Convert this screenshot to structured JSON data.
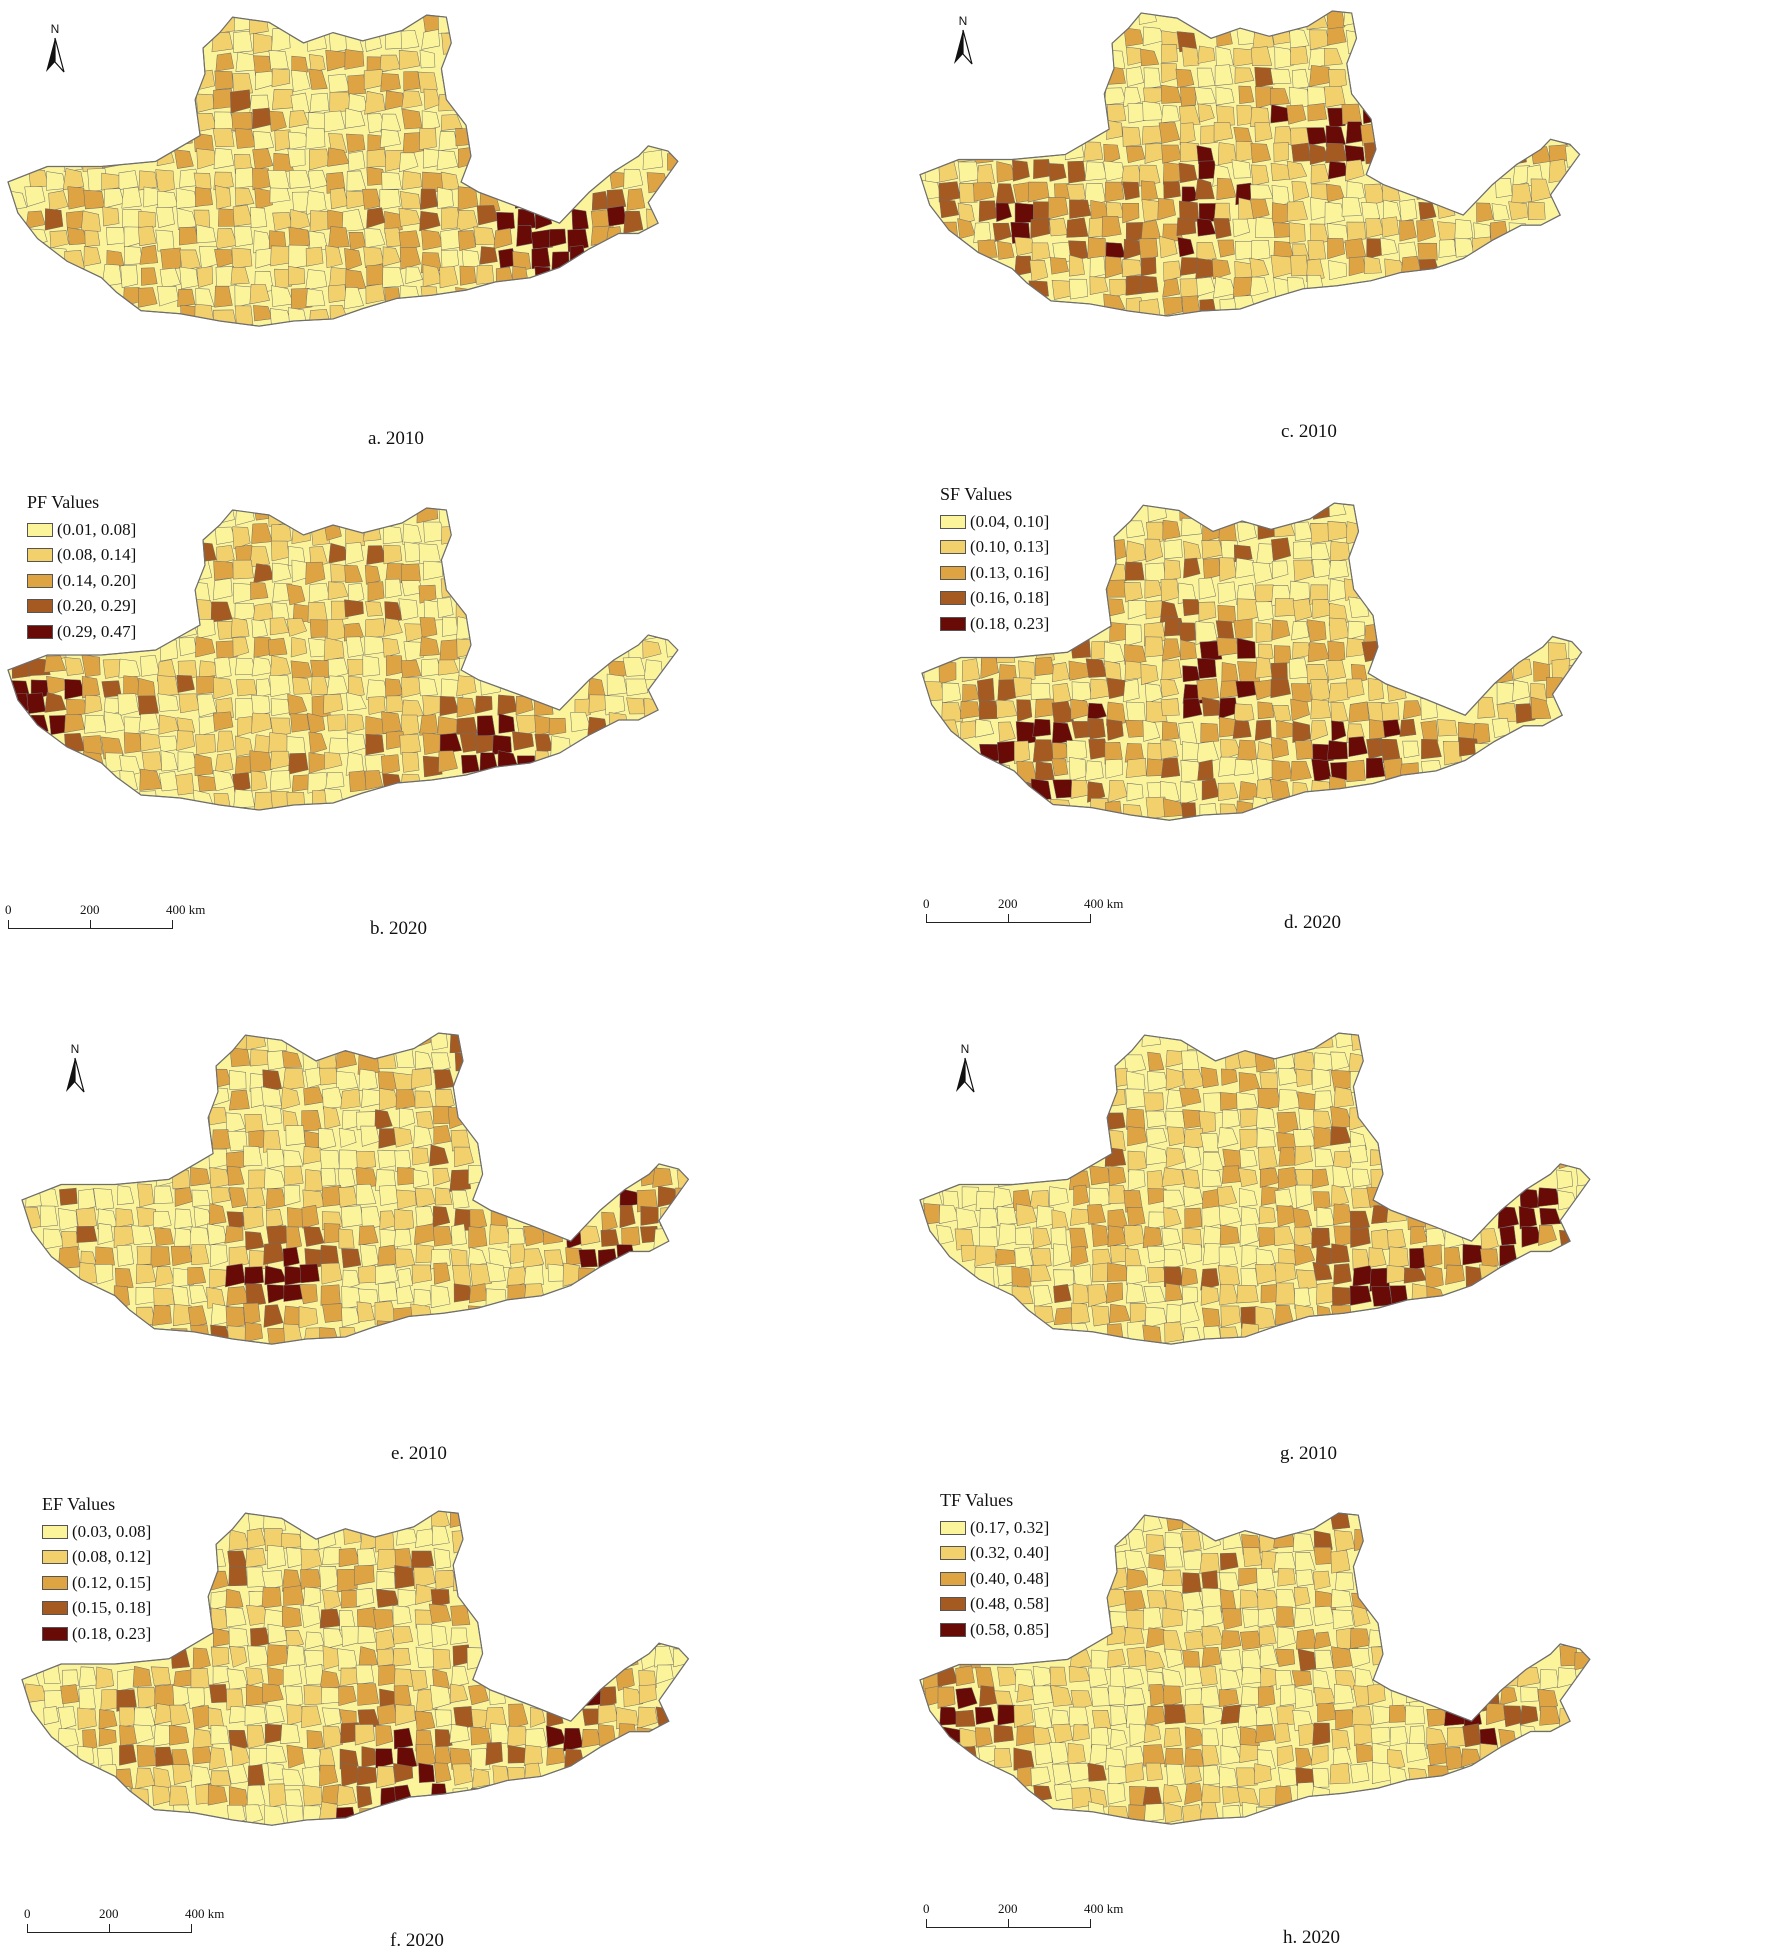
{
  "figure": {
    "panels": [
      {
        "id": "a",
        "caption": "a. 2010"
      },
      {
        "id": "b",
        "caption": "b. 2020"
      },
      {
        "id": "c",
        "caption": "c. 2010"
      },
      {
        "id": "d",
        "caption": "d. 2020"
      },
      {
        "id": "e",
        "caption": "e. 2010"
      },
      {
        "id": "f",
        "caption": "f. 2020"
      },
      {
        "id": "g",
        "caption": "g. 2010"
      },
      {
        "id": "h",
        "caption": "h. 2020"
      }
    ],
    "north_label": "N",
    "scale": {
      "t0": "0",
      "t1": "200",
      "t2": "400 km"
    },
    "legends": {
      "pf": {
        "title": "PF Values",
        "classes": [
          "(0.01, 0.08]",
          "(0.08, 0.14]",
          "(0.14, 0.20]",
          "(0.20, 0.29]",
          "(0.29, 0.47]"
        ]
      },
      "sf": {
        "title": "SF Values",
        "classes": [
          "(0.04, 0.10]",
          "(0.10, 0.13]",
          "(0.13, 0.16]",
          "(0.16, 0.18]",
          "(0.18, 0.23]"
        ]
      },
      "ef": {
        "title": "EF Values",
        "classes": [
          "(0.03, 0.08]",
          "(0.08, 0.12]",
          "(0.12, 0.15]",
          "(0.15, 0.18]",
          "(0.18, 0.23]"
        ]
      },
      "tf": {
        "title": "TF Values",
        "classes": [
          "(0.17, 0.32]",
          "(0.32, 0.40]",
          "(0.40, 0.48]",
          "(0.48, 0.58]",
          "(0.58, 0.85]"
        ]
      }
    }
  },
  "colors": {
    "class_1": "#fbf49a",
    "class_2": "#f2d06b",
    "class_3": "#dea443",
    "class_4": "#a45a20",
    "class_5": "#680a06",
    "boundary": "#6e6e6e"
  }
}
